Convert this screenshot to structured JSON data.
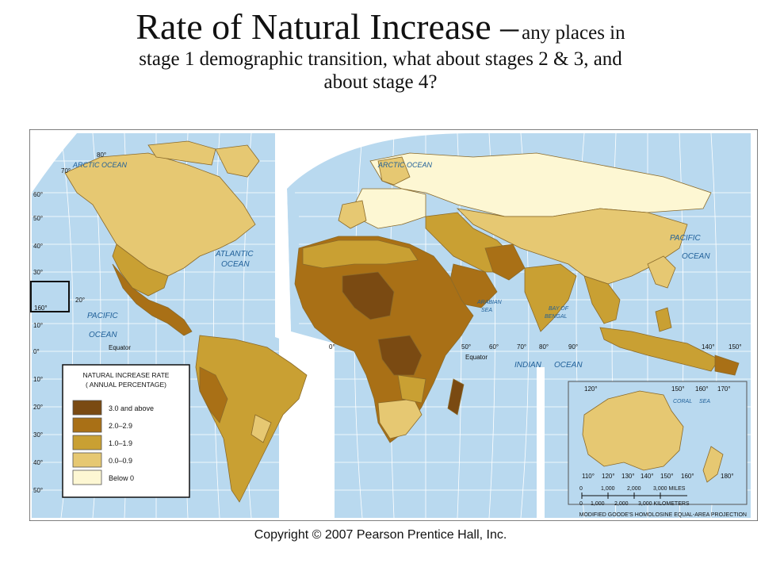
{
  "slide": {
    "title_big": "Rate of Natural Increase –",
    "title_small": "any places in",
    "title_line2": "stage 1 demographic transition, what about stages 2 & 3, and",
    "title_line3": "about stage 4?"
  },
  "map": {
    "oceans": {
      "arctic_left": "ARCTIC OCEAN",
      "arctic_right": "ARCTIC OCEAN",
      "atlantic_1": "ATLANTIC",
      "atlantic_2": "OCEAN",
      "pacific_left_1": "PACIFIC",
      "pacific_left_2": "OCEAN",
      "pacific_right_1": "PACIFIC",
      "pacific_right_2": "OCEAN",
      "indian": "INDIAN",
      "indian_ocean": "OCEAN",
      "arabian_1": "ARABIAN",
      "arabian_2": "SEA",
      "bengal_1": "BAY OF",
      "bengal_2": "BENGAL",
      "coral": "CORAL",
      "coral_sea": "SEA"
    },
    "equator_left": "Equator",
    "equator_right": "Equator",
    "lat_labels": {
      "n80": "80°",
      "n70": "70°",
      "n60": "60°",
      "n50": "50°",
      "n40": "40°",
      "n30": "30°",
      "n20": "20°",
      "n10": "10°",
      "z0": "0°",
      "s10": "10°",
      "s20": "20°",
      "s30": "30°",
      "s40": "40°",
      "s50": "50°"
    },
    "lon_labels": {
      "l160": "160°",
      "l0": "0°",
      "l50": "50°",
      "l60": "60°",
      "l70": "70°",
      "l80": "80°",
      "l90": "90°",
      "l140": "140°",
      "l150": "150°",
      "l120": "120°",
      "l160b": "160°",
      "l170": "170°",
      "l110": "110°",
      "l120b": "120°",
      "l130": "130°",
      "l140b": "140°",
      "l150b": "150°",
      "l160c": "160°",
      "l180": "180°"
    },
    "legend": {
      "title_1": "NATURAL INCREASE RATE",
      "title_2": "( ANNUAL PERCENTAGE)",
      "items": [
        {
          "label": "3.0 and above",
          "color": "#7a4a12"
        },
        {
          "label": "2.0–2.9",
          "color": "#a97016"
        },
        {
          "label": "1.0–1.9",
          "color": "#c9a033"
        },
        {
          "label": "0.0–0.9",
          "color": "#e6c872"
        },
        {
          "label": "Below 0",
          "color": "#fdf7d3"
        }
      ]
    },
    "scale": {
      "miles": [
        "0",
        "1,000",
        "2,000",
        "3,000 MILES"
      ],
      "km": [
        "0",
        "1,000",
        "2,000",
        "3,000 KILOMETERS"
      ]
    },
    "projection": "MODIFIED GOODE'S HOMOLOSINE EQUAL-AREA PROJECTION",
    "colors": {
      "ocean": "#b9d9ef",
      "grid": "#ffffff",
      "border": "#6d5a3a"
    }
  },
  "footer": {
    "copyright": "Copyright © 2007 Pearson Prentice Hall, Inc."
  }
}
